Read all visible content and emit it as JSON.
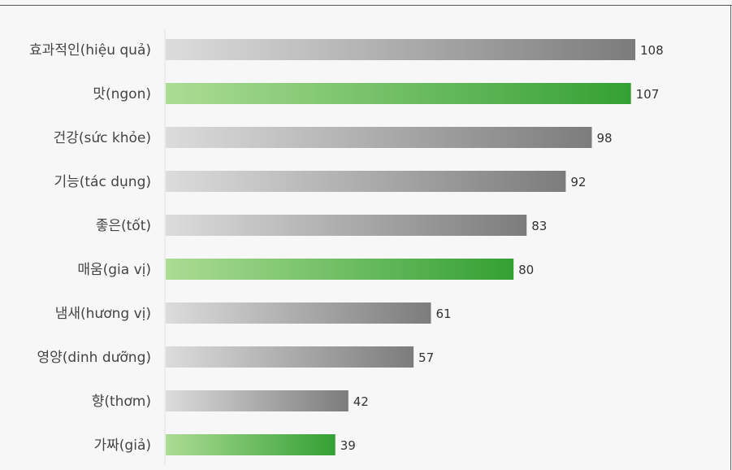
{
  "chart_data": {
    "type": "bar",
    "orientation": "horizontal",
    "categories": [
      "효과적인(hiệu quả)",
      "맛(ngon)",
      "건강(sức khỏe)",
      "기능(tác dụng)",
      "좋은(tốt)",
      "매움(gia vị)",
      "냄새(hương vị)",
      "영양(dinh dưỡng)",
      "향(thơm)",
      "가짜(giả)"
    ],
    "values": [
      108,
      107,
      98,
      92,
      83,
      80,
      61,
      57,
      42,
      39
    ],
    "highlighted": [
      false,
      true,
      false,
      false,
      false,
      true,
      false,
      false,
      false,
      true
    ],
    "xlim": [
      0,
      108
    ],
    "grid": false,
    "colors": {
      "default_start": "#dcdcdc",
      "default_end": "#7c7c7c",
      "highlight_start": "#acdc94",
      "highlight_end": "#34a034",
      "background": "#f7f7f7"
    }
  }
}
